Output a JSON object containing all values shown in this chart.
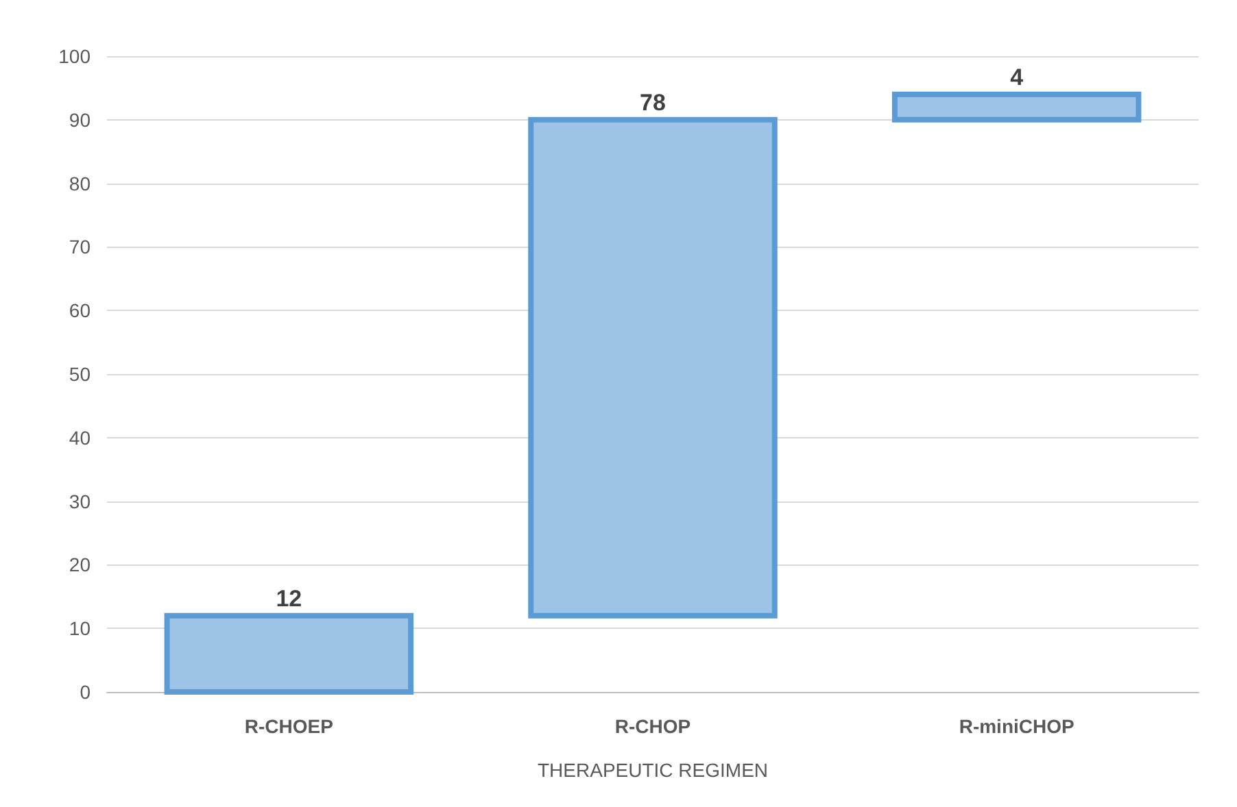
{
  "chart_data": {
    "type": "bar",
    "xlabel": "THERAPEUTIC REGIMEN",
    "categories": [
      "R-CHOEP",
      "R-CHOP",
      "R-miniCHOP"
    ],
    "values": [
      12,
      78,
      4
    ],
    "base": [
      0,
      12,
      90
    ],
    "color": "#9dc3e6",
    "ylim": [
      0,
      100
    ],
    "yticks": [
      0,
      10,
      20,
      30,
      40,
      50,
      60,
      70,
      80,
      90,
      100
    ],
    "grid": "y",
    "data_labels": true
  }
}
